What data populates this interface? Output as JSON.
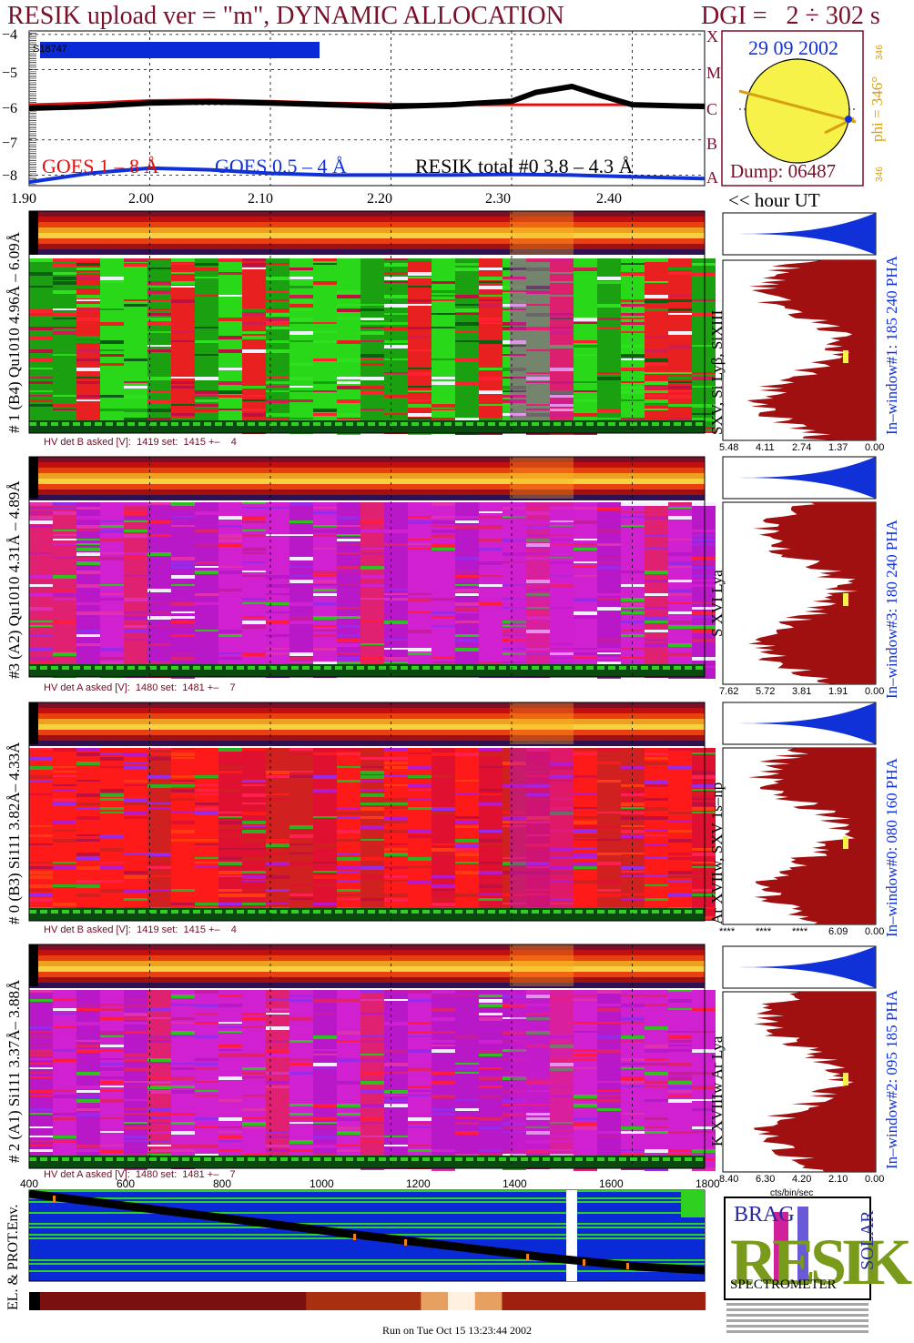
{
  "title": {
    "main": "RESIK upload ver = \"m\", DYNAMIC ALLOCATION",
    "dgi": "DGI =   2 ÷ 302 s"
  },
  "goes": {
    "yticks": [
      "−4",
      "−5",
      "−6",
      "−7",
      "−8"
    ],
    "class_letters": [
      "X",
      "M",
      "C",
      "B",
      "A"
    ],
    "legend_goes18": "GOES 1 – 8 Å",
    "legend_goes054": "GOES 0.5 – 4 Å",
    "legend_resik": "RESIK total #0  3.8 – 4.3 Å",
    "bar_label": "S18747",
    "colors": {
      "goes18": "#e01010",
      "goes054": "#1030d8",
      "resik": "#000000",
      "bar": "#0a2ad8"
    }
  },
  "sun": {
    "date": "29 09 2002",
    "dump": "Dump: 06487",
    "phi": "phi = 346°",
    "phi_small_top": "346",
    "phi_small_bottom": "346"
  },
  "time_axis": {
    "ticks": [
      "1.90",
      "2.00",
      "2.10",
      "2.20",
      "2.30",
      "2.40"
    ],
    "hour_label": "<< hour UT"
  },
  "channels": [
    {
      "id": "ch1",
      "side_label": "# 1 (B4) Qu1010 4.96Å – 6.09Å",
      "lines_label": "SXV, Si Lyβ, SiXIII",
      "pha_label": "In–window#1:  185 240 PHA",
      "hv": "HV det B asked [V]:  1419 set:  1415 +–    4",
      "pha_ticks": [
        "5.48",
        "4.11",
        "2.74",
        "1.37",
        "0.00"
      ]
    },
    {
      "id": "ch3",
      "side_label": "#3 (A2) Qu1010  4.31Å – 4.89Å",
      "lines_label": "S XVI Lya",
      "pha_label": "In–window#3:  180 240 PHA",
      "hv": "HV det A asked [V]:  1480 set:  1481 +–    7",
      "pha_ticks": [
        "7.62",
        "5.72",
        "3.81",
        "1.91",
        "0.00"
      ]
    },
    {
      "id": "ch0",
      "side_label": "# 0 (B3) Si111  3.82Å– 4.33Å",
      "lines_label": "Ar XVIIw,  SXV 1s–np",
      "pha_label": "In–window#0:  080 160 PHA",
      "hv": "HV det B asked [V]:  1419 set:  1415 +–    4",
      "pha_ticks": [
        "****",
        "****",
        "****",
        "6.09",
        "0.00"
      ]
    },
    {
      "id": "ch2",
      "side_label": "# 2 (A1) Si111  3.37Å– 3.88Å",
      "lines_label": "K XVIIIw  Ar Lya",
      "pha_label": "In–window#2:  095 185 PHA",
      "hv": "HV det A asked [V]:  1480 set:  1481 +–    7",
      "pha_ticks": [
        "8.40",
        "6.30",
        "4.20",
        "2.10",
        "0.00"
      ],
      "pha_unit": "cts/bin/sec"
    }
  ],
  "env": {
    "label": "EL. & PROT.Env.",
    "ticks": [
      "400",
      "600",
      "800",
      "1000",
      "1200",
      "1400",
      "1600",
      "1800"
    ]
  },
  "logo": {
    "letters": "RESIK",
    "small_top": "BRAG",
    "small_side": "SOLAR",
    "bottom": "SPECTROMETER"
  },
  "footer": "Run on Tue Oct 15 13:23:44 2002",
  "chart_data": [
    {
      "type": "line",
      "title": "RESIK upload ver = \"m\", DYNAMIC ALLOCATION",
      "xlabel": "",
      "ylabel": "",
      "x_ticks": [
        "1.90",
        "2.00",
        "2.10",
        "2.20",
        "2.30",
        "2.40"
      ],
      "xlim": [
        1.9,
        2.46
      ],
      "ylim": [
        -8.3,
        -3.9
      ],
      "series": [
        {
          "name": "GOES 1 – 8 Å",
          "x": [
            1.9,
            1.95,
            2.0,
            2.05,
            2.1,
            2.15,
            2.2,
            2.25,
            2.3,
            2.35,
            2.4,
            2.46
          ],
          "values": [
            -6.0,
            -5.95,
            -5.88,
            -5.86,
            -5.9,
            -5.95,
            -5.98,
            -6.0,
            -6.0,
            -6.0,
            -6.0,
            -6.0
          ]
        },
        {
          "name": "GOES 0.5 – 4 Å",
          "x": [
            1.9,
            1.95,
            2.0,
            2.05,
            2.1,
            2.15,
            2.2,
            2.25,
            2.3,
            2.35,
            2.4,
            2.46
          ],
          "values": [
            -8.2,
            -7.95,
            -7.8,
            -7.85,
            -7.95,
            -8.0,
            -8.0,
            -8.0,
            -7.98,
            -8.0,
            -8.05,
            -8.1
          ]
        },
        {
          "name": "RESIK total #0  3.8 – 4.3 Å",
          "x": [
            1.9,
            1.95,
            2.0,
            2.05,
            2.1,
            2.15,
            2.2,
            2.25,
            2.3,
            2.32,
            2.35,
            2.37,
            2.4,
            2.46
          ],
          "values": [
            -6.1,
            -6.05,
            -5.95,
            -5.92,
            -5.95,
            -6.0,
            -6.05,
            -6.0,
            -5.9,
            -5.65,
            -5.48,
            -5.7,
            -6.0,
            -6.05
          ]
        }
      ]
    }
  ]
}
